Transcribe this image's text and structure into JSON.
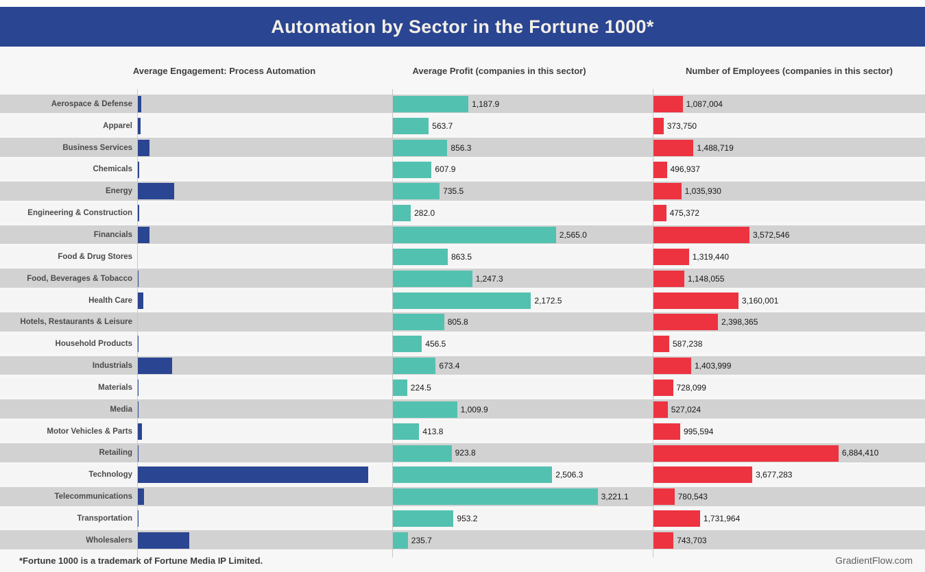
{
  "title": "Automation by Sector in the Fortune 1000*",
  "column_headers": {
    "engagement": "Average Engagement: Process Automation",
    "profit": "Average Profit (companies in this sector)",
    "employees": "Number of Employees (companies in this sector)"
  },
  "footer": {
    "note": "*Fortune 1000 is a trademark of Fortune Media IP Limited.",
    "credit": "GradientFlow.com"
  },
  "colors": {
    "header_bg": "#2a4591",
    "engagement_bar": "#2a4591",
    "profit_bar": "#53c1b0",
    "employees_bar": "#ed3340",
    "row_stripe_dark": "#d2d2d2",
    "row_stripe_light": "#f5f5f5",
    "page_bg": "#f7f7f7",
    "axis_line": "#c7c7c7"
  },
  "chart_data": {
    "type": "bar",
    "orientation": "horizontal",
    "title": "Automation by Sector in the Fortune 1000*",
    "grid": "off",
    "legend": "none",
    "panels": [
      "Average Engagement: Process Automation",
      "Average Profit (companies in this sector)",
      "Number of Employees (companies in this sector)"
    ],
    "categories": [
      "Aerospace & Defense",
      "Apparel",
      "Business Services",
      "Chemicals",
      "Energy",
      "Engineering & Construction",
      "Financials",
      "Food & Drug Stores",
      "Food, Beverages & Tobacco",
      "Health Care",
      "Hotels, Restaurants & Leisure",
      "Household Products",
      "Industrials",
      "Materials",
      "Media",
      "Motor Vehicles & Parts",
      "Retailing",
      "Technology",
      "Telecommunications",
      "Transportation",
      "Wholesalers"
    ],
    "series": [
      {
        "name": "Average Engagement: Process Automation",
        "unit": "relative engagement, estimated from bar lengths (max = 1.0 at Technology; bars carry no data labels in source)",
        "values": [
          0.015,
          0.012,
          0.051,
          0.006,
          0.158,
          0.006,
          0.051,
          0,
          0.004,
          0.024,
          0,
          0.003,
          0.149,
          0.001,
          0.003,
          0.018,
          0.001,
          1.0,
          0.026,
          0.004,
          0.223
        ]
      },
      {
        "name": "Average Profit (companies in this sector)",
        "values": [
          1187.9,
          563.7,
          856.3,
          607.9,
          735.5,
          282.0,
          2565.0,
          863.5,
          1247.3,
          2172.5,
          805.8,
          456.5,
          673.4,
          224.5,
          1009.9,
          413.8,
          923.8,
          2506.3,
          3221.1,
          953.2,
          235.7
        ]
      },
      {
        "name": "Number of Employees (companies in this sector)",
        "values": [
          1087004,
          373750,
          1488719,
          496937,
          1035930,
          475372,
          3572546,
          1319440,
          1148055,
          3160001,
          2398365,
          587238,
          1403999,
          728099,
          527024,
          995594,
          6884410,
          3677283,
          780543,
          1731964,
          743703
        ]
      }
    ]
  }
}
